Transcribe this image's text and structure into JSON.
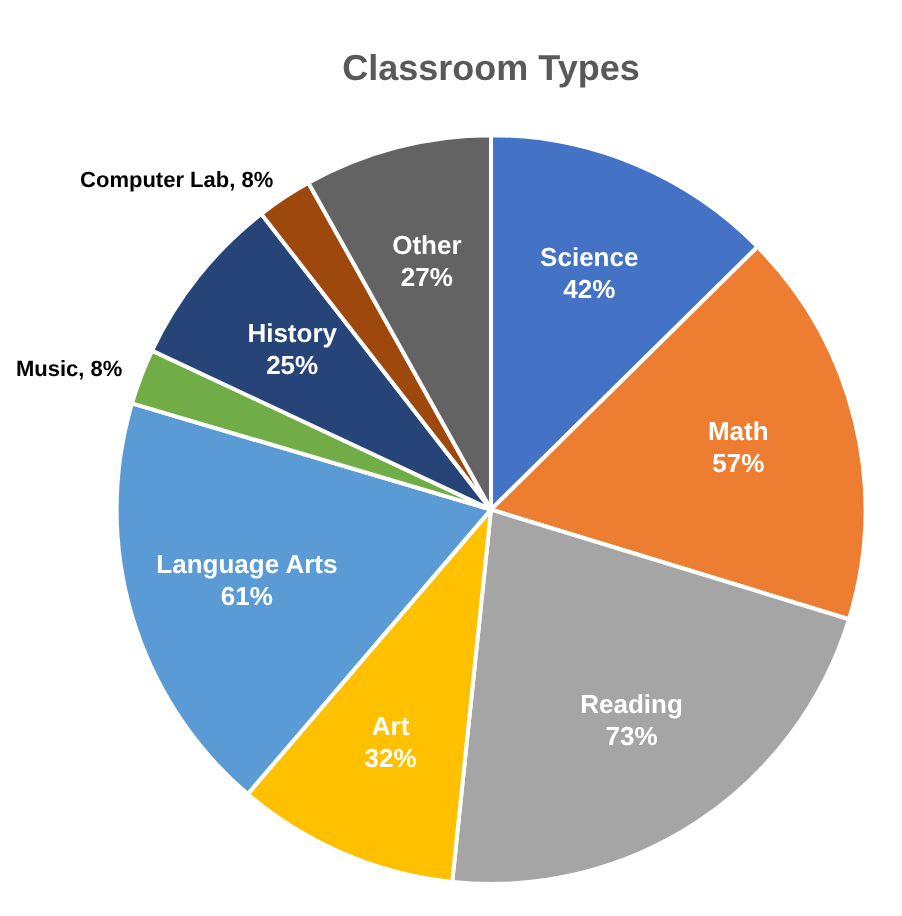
{
  "chart_data": {
    "type": "pie",
    "title": "Classroom Types",
    "categories": [
      "Science",
      "Math",
      "Reading",
      "Art",
      "Language Arts",
      "Music",
      "History",
      "Computer Lab",
      "Other"
    ],
    "values": [
      42,
      57,
      73,
      32,
      61,
      8,
      25,
      8,
      27
    ],
    "value_labels": [
      "42%",
      "57%",
      "73%",
      "32%",
      "61%",
      "8%",
      "25%",
      "8%",
      "27%"
    ],
    "colors": [
      "#4472c4",
      "#ed7d31",
      "#a5a5a5",
      "#ffc000",
      "#5b9bd5",
      "#70ad47",
      "#264478",
      "#9e480e",
      "#636363"
    ]
  }
}
